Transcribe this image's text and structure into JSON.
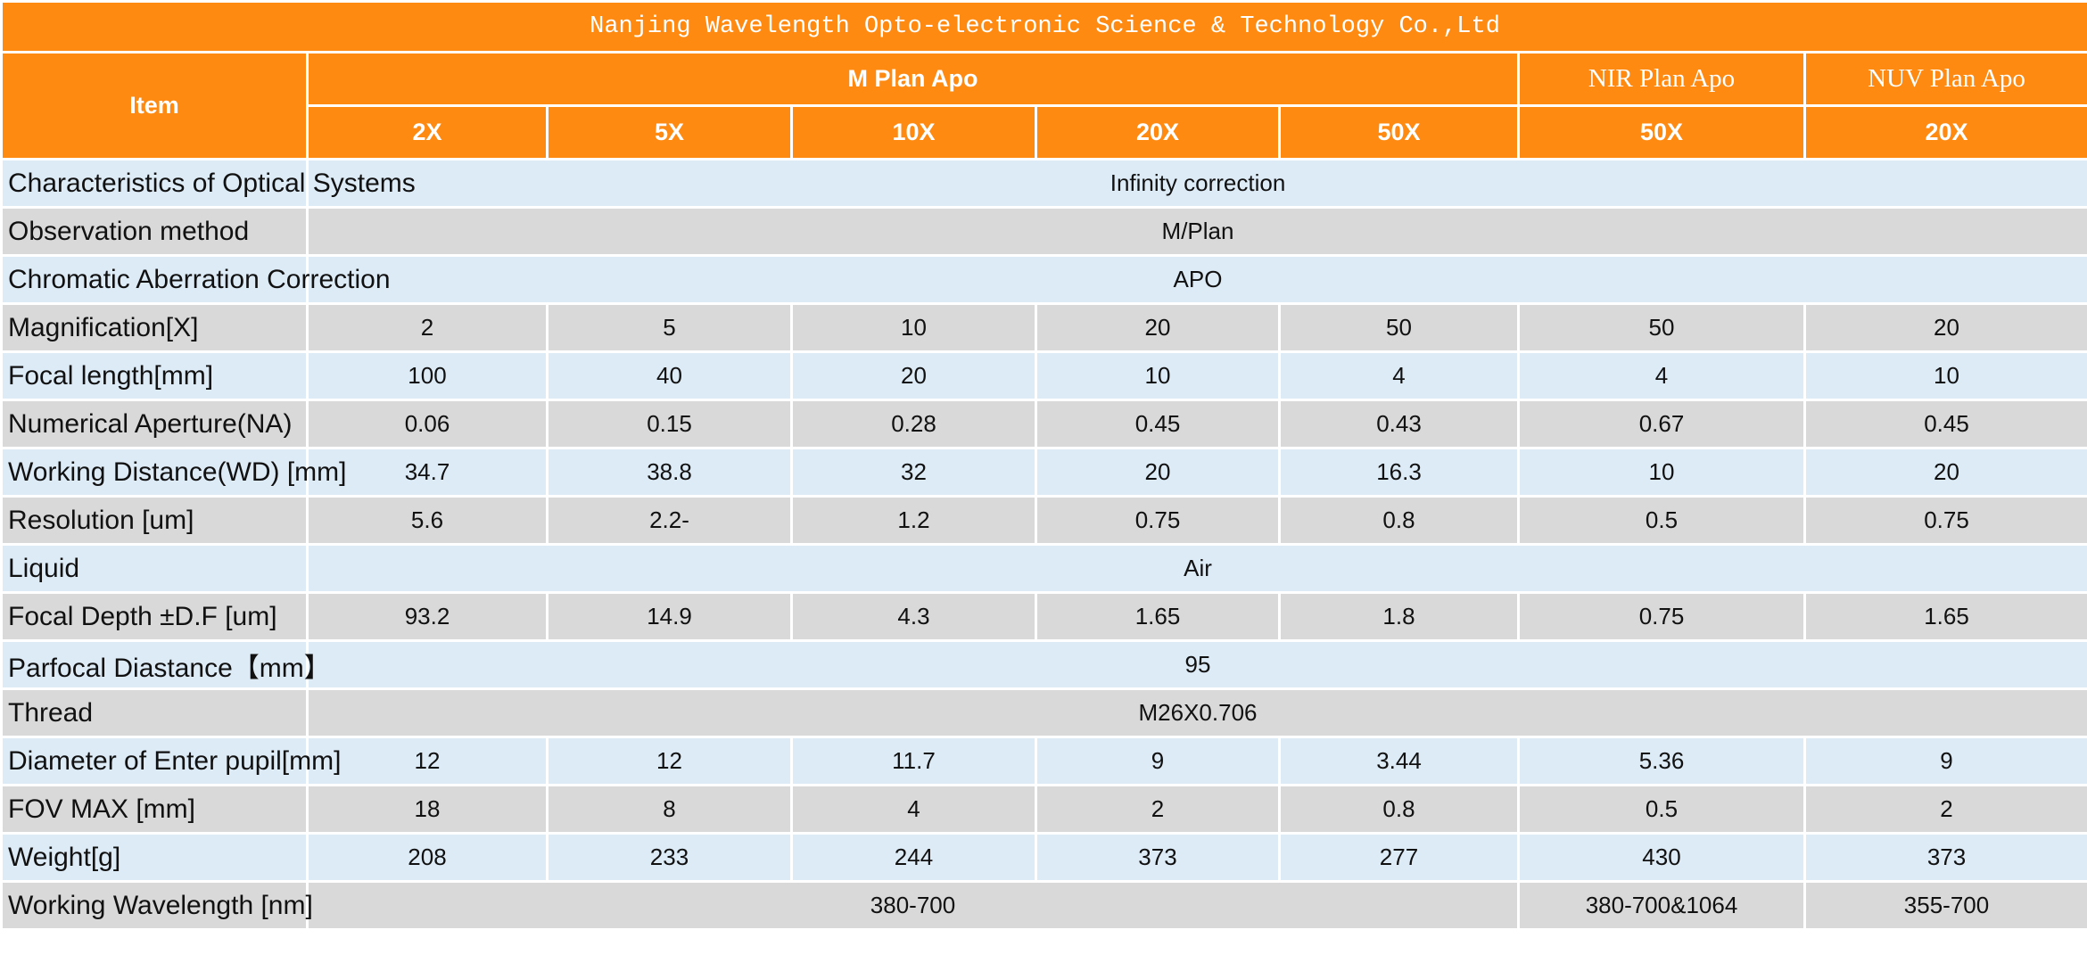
{
  "header": {
    "title": "Nanjing Wavelength Opto-electronic Science & Technology Co.,Ltd",
    "item": "Item",
    "groups": [
      "M Plan Apo",
      "NIR Plan Apo",
      "NUV Plan Apo"
    ],
    "magnifications": [
      "2X",
      "5X",
      "10X",
      "20X",
      "50X",
      "50X",
      "20X"
    ]
  },
  "table": {
    "rows": [
      {
        "label": "Characteristics of Optical Systems",
        "cells": [
          "Infinity correction"
        ]
      },
      {
        "label": "Observation method",
        "cells": [
          "M/Plan"
        ]
      },
      {
        "label": "Chromatic Aberration Correction",
        "cells": [
          "APO"
        ]
      },
      {
        "label": "Magnification[X]",
        "cells": [
          "2",
          "5",
          "10",
          "20",
          "50",
          "50",
          "20"
        ]
      },
      {
        "label": "Focal length[mm]",
        "cells": [
          "100",
          "40",
          "20",
          "10",
          "4",
          "4",
          "10"
        ]
      },
      {
        "label": "Numerical Aperture(NA)",
        "cells": [
          "0.06",
          "0.15",
          "0.28",
          "0.45",
          "0.43",
          "0.67",
          "0.45"
        ]
      },
      {
        "label": "Working Distance(WD) [mm]",
        "cells": [
          "34.7",
          "38.8",
          "32",
          "20",
          "16.3",
          "10",
          "20"
        ]
      },
      {
        "label": "Resolution [um]",
        "cells": [
          "5.6",
          "2.2-",
          "1.2",
          "0.75",
          "0.8",
          "0.5",
          "0.75"
        ]
      },
      {
        "label": "Liquid",
        "cells": [
          "Air"
        ]
      },
      {
        "label": "Focal Depth ±D.F [um]",
        "cells": [
          "93.2",
          "14.9",
          "4.3",
          "1.65",
          "1.8",
          "0.75",
          "1.65"
        ]
      },
      {
        "label": "Parfocal Diastance【mm】",
        "cells": [
          "95"
        ]
      },
      {
        "label": "Thread",
        "cells": [
          "M26X0.706"
        ]
      },
      {
        "label": "Diameter of Enter pupil[mm]",
        "cells": [
          "12",
          "12",
          "11.7",
          "9",
          "3.44",
          "5.36",
          "9"
        ]
      },
      {
        "label": "FOV MAX [mm]",
        "cells": [
          "18",
          "8",
          "4",
          "2",
          "0.8",
          "0.5",
          "2"
        ]
      },
      {
        "label": "Weight[g]",
        "cells": [
          "208",
          "233",
          "244",
          "373",
          "277",
          "430",
          "373"
        ]
      },
      {
        "label": "Working Wavelength [nm]",
        "cells": [
          "380-700",
          "380-700&1064",
          "355-700"
        ]
      }
    ]
  }
}
